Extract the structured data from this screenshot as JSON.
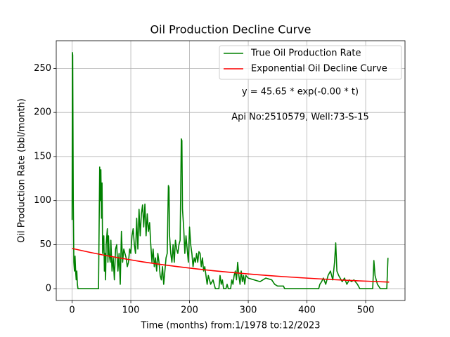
{
  "chart_data": {
    "type": "line",
    "title": "Oil Production Decline Curve",
    "xlabel": "Time (months) from:1/1978 to:12/2023",
    "ylabel": "Oil Production Rate (bbl/month)",
    "annotations": [
      "y = 45.65 * exp(-0.00 * t)",
      "Api No:2510579, Well:73-S-15"
    ],
    "xlim": [
      -27,
      567
    ],
    "ylim": [
      -13.4,
      281.4
    ],
    "xticks": [
      0,
      100,
      200,
      300,
      400,
      500
    ],
    "yticks": [
      0,
      50,
      100,
      150,
      200,
      250
    ],
    "grid": true,
    "legend": "upper right",
    "series": [
      {
        "name": "True Oil Production Rate",
        "color": "#008000",
        "x": [
          0,
          0.5,
          1,
          2,
          3,
          4,
          5,
          6,
          7,
          8,
          9,
          10,
          45,
          46,
          47,
          48,
          49,
          50,
          51,
          52,
          54,
          55,
          56,
          57,
          58,
          60,
          61,
          62,
          63,
          65,
          66,
          68,
          70,
          72,
          74,
          76,
          78,
          80,
          82,
          84,
          86,
          88,
          90,
          92,
          94,
          96,
          98,
          100,
          102,
          104,
          106,
          108,
          110,
          112,
          114,
          116,
          118,
          120,
          122,
          124,
          126,
          128,
          130,
          132,
          134,
          136,
          138,
          140,
          142,
          144,
          146,
          148,
          150,
          152,
          154,
          156,
          158,
          160,
          162,
          164,
          165,
          166,
          168,
          170,
          172,
          174,
          176,
          178,
          180,
          182,
          184,
          186,
          187,
          188,
          190,
          192,
          194,
          196,
          198,
          200,
          202,
          204,
          206,
          208,
          210,
          212,
          214,
          216,
          218,
          220,
          222,
          224,
          226,
          228,
          230,
          232,
          234,
          236,
          240,
          242,
          244,
          250,
          252,
          254,
          256,
          258,
          262,
          264,
          266,
          270,
          272,
          274,
          276,
          278,
          280,
          282,
          284,
          286,
          288,
          290,
          292,
          294,
          296,
          300,
          310,
          320,
          330,
          340,
          345,
          350,
          360,
          362,
          420,
          422,
          425,
          428,
          432,
          436,
          440,
          444,
          447,
          449,
          451,
          454,
          460,
          464,
          468,
          472,
          476,
          480,
          486,
          490,
          512,
          514,
          516,
          520,
          525,
          536,
          538
        ],
        "values": [
          78,
          268,
          265,
          100,
          30,
          20,
          37,
          20,
          10,
          20,
          5,
          0,
          0,
          70,
          138,
          100,
          135,
          80,
          120,
          40,
          60,
          20,
          40,
          10,
          50,
          68,
          30,
          60,
          40,
          30,
          55,
          20,
          35,
          10,
          45,
          50,
          20,
          40,
          5,
          65,
          30,
          45,
          40,
          35,
          25,
          30,
          45,
          40,
          60,
          68,
          50,
          40,
          80,
          45,
          90,
          60,
          85,
          95,
          70,
          96,
          60,
          85,
          65,
          75,
          50,
          30,
          45,
          25,
          35,
          20,
          40,
          30,
          15,
          10,
          25,
          5,
          20,
          35,
          40,
          117,
          115,
          60,
          40,
          30,
          50,
          30,
          55,
          45,
          40,
          50,
          55,
          170,
          168,
          90,
          70,
          40,
          60,
          45,
          30,
          70,
          50,
          40,
          25,
          35,
          30,
          40,
          30,
          42,
          40,
          25,
          35,
          20,
          25,
          15,
          5,
          15,
          10,
          5,
          10,
          5,
          0,
          0,
          15,
          5,
          10,
          0,
          0,
          5,
          0,
          0,
          10,
          5,
          15,
          20,
          10,
          30,
          15,
          5,
          20,
          8,
          15,
          5,
          15,
          12,
          10,
          8,
          12,
          10,
          5,
          3,
          3,
          0,
          0,
          5,
          8,
          12,
          5,
          15,
          20,
          10,
          30,
          52,
          20,
          15,
          8,
          12,
          5,
          10,
          8,
          10,
          5,
          0,
          0,
          32,
          15,
          5,
          0,
          0,
          35
        ]
      },
      {
        "name": "Exponential Oil Decline Curve",
        "color": "#ff0000",
        "x": [
          0,
          30,
          60,
          90,
          120,
          150,
          180,
          210,
          240,
          270,
          300,
          330,
          360,
          390,
          420,
          450,
          480,
          510,
          540
        ],
        "values": [
          45.65,
          41.3,
          37.3,
          33.8,
          30.5,
          27.6,
          25.0,
          22.6,
          20.4,
          18.5,
          16.7,
          15.1,
          13.7,
          12.4,
          11.2,
          10.1,
          9.15,
          8.3,
          7.5
        ]
      }
    ]
  }
}
